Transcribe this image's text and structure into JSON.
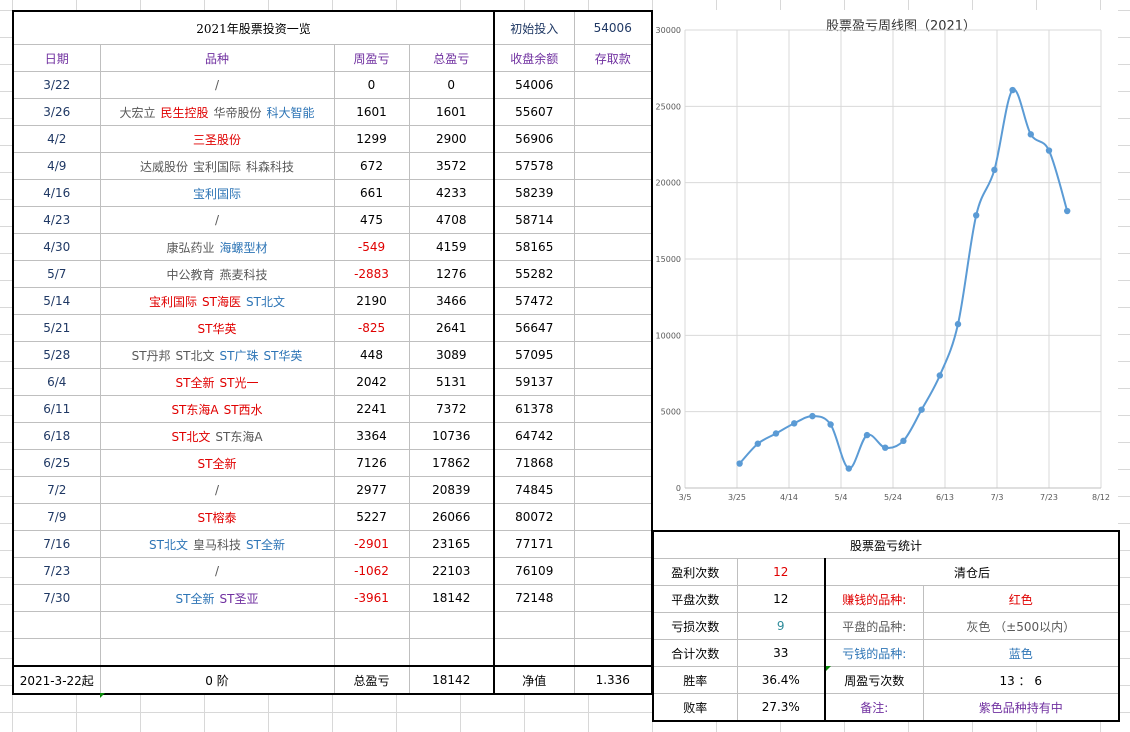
{
  "sheet": {
    "title": "2021年股票投资一览",
    "initial_label": "初始投入",
    "initial_value": "54006",
    "headers": [
      "日期",
      "品种",
      "周盈亏",
      "总盈亏",
      "收盘余额",
      "存取款"
    ],
    "rows": [
      {
        "date": "3/22",
        "stocks": [
          {
            "t": "/",
            "c": "gray"
          }
        ],
        "week": "0",
        "wc": "",
        "total": "0",
        "balance": "54006"
      },
      {
        "date": "3/26",
        "stocks": [
          {
            "t": "大宏立",
            "c": "gray"
          },
          {
            "t": "民生控股",
            "c": "red"
          },
          {
            "t": "华帝股份",
            "c": "gray"
          },
          {
            "t": "科大智能",
            "c": "blue"
          }
        ],
        "week": "1601",
        "wc": "",
        "total": "1601",
        "balance": "55607"
      },
      {
        "date": "4/2",
        "stocks": [
          {
            "t": "三圣股份",
            "c": "red"
          }
        ],
        "week": "1299",
        "wc": "",
        "total": "2900",
        "balance": "56906"
      },
      {
        "date": "4/9",
        "stocks": [
          {
            "t": "达威股份",
            "c": "gray"
          },
          {
            "t": "宝利国际",
            "c": "gray"
          },
          {
            "t": "科森科技",
            "c": "gray"
          }
        ],
        "week": "672",
        "wc": "",
        "total": "3572",
        "balance": "57578"
      },
      {
        "date": "4/16",
        "stocks": [
          {
            "t": "宝利国际",
            "c": "blue"
          }
        ],
        "week": "661",
        "wc": "",
        "total": "4233",
        "balance": "58239"
      },
      {
        "date": "4/23",
        "stocks": [
          {
            "t": "/",
            "c": "gray"
          }
        ],
        "week": "475",
        "wc": "",
        "total": "4708",
        "balance": "58714"
      },
      {
        "date": "4/30",
        "stocks": [
          {
            "t": "康弘药业",
            "c": "gray"
          },
          {
            "t": "海螺型材",
            "c": "blue"
          }
        ],
        "week": "-549",
        "wc": "red",
        "total": "4159",
        "balance": "58165"
      },
      {
        "date": "5/7",
        "stocks": [
          {
            "t": "中公教育",
            "c": "gray"
          },
          {
            "t": "燕麦科技",
            "c": "gray"
          }
        ],
        "week": "-2883",
        "wc": "red",
        "total": "1276",
        "balance": "55282"
      },
      {
        "date": "5/14",
        "stocks": [
          {
            "t": "宝利国际",
            "c": "red"
          },
          {
            "t": "ST海医",
            "c": "red"
          },
          {
            "t": "ST北文",
            "c": "blue"
          }
        ],
        "week": "2190",
        "wc": "",
        "total": "3466",
        "balance": "57472"
      },
      {
        "date": "5/21",
        "stocks": [
          {
            "t": "ST华英",
            "c": "red"
          }
        ],
        "week": "-825",
        "wc": "red",
        "total": "2641",
        "balance": "56647"
      },
      {
        "date": "5/28",
        "stocks": [
          {
            "t": "ST丹邦",
            "c": "gray"
          },
          {
            "t": "ST北文",
            "c": "gray"
          },
          {
            "t": "ST广珠",
            "c": "blue"
          },
          {
            "t": "ST华英",
            "c": "blue"
          }
        ],
        "week": "448",
        "wc": "",
        "total": "3089",
        "balance": "57095"
      },
      {
        "date": "6/4",
        "stocks": [
          {
            "t": "ST全新",
            "c": "red"
          },
          {
            "t": "ST光一",
            "c": "red"
          }
        ],
        "week": "2042",
        "wc": "",
        "total": "5131",
        "balance": "59137"
      },
      {
        "date": "6/11",
        "stocks": [
          {
            "t": "ST东海A",
            "c": "red"
          },
          {
            "t": "ST西水",
            "c": "red"
          }
        ],
        "week": "2241",
        "wc": "",
        "total": "7372",
        "balance": "61378"
      },
      {
        "date": "6/18",
        "stocks": [
          {
            "t": "ST北文",
            "c": "red"
          },
          {
            "t": "ST东海A",
            "c": "gray"
          }
        ],
        "week": "3364",
        "wc": "",
        "total": "10736",
        "balance": "64742"
      },
      {
        "date": "6/25",
        "stocks": [
          {
            "t": "ST全新",
            "c": "red"
          }
        ],
        "week": "7126",
        "wc": "",
        "total": "17862",
        "balance": "71868"
      },
      {
        "date": "7/2",
        "stocks": [
          {
            "t": "/",
            "c": "gray"
          }
        ],
        "week": "2977",
        "wc": "",
        "total": "20839",
        "balance": "74845"
      },
      {
        "date": "7/9",
        "stocks": [
          {
            "t": "ST榕泰",
            "c": "red"
          }
        ],
        "week": "5227",
        "wc": "",
        "total": "26066",
        "balance": "80072"
      },
      {
        "date": "7/16",
        "stocks": [
          {
            "t": "ST北文",
            "c": "blue"
          },
          {
            "t": "皇马科技",
            "c": "gray"
          },
          {
            "t": "ST全新",
            "c": "blue"
          }
        ],
        "week": "-2901",
        "wc": "red",
        "total": "23165",
        "balance": "77171"
      },
      {
        "date": "7/23",
        "stocks": [
          {
            "t": "/",
            "c": "gray"
          }
        ],
        "week": "-1062",
        "wc": "red",
        "total": "22103",
        "balance": "76109"
      },
      {
        "date": "7/30",
        "stocks": [
          {
            "t": "ST全新",
            "c": "blue"
          },
          {
            "t": "ST圣亚",
            "c": "purple"
          }
        ],
        "week": "-3961",
        "wc": "red",
        "total": "18142",
        "balance": "72148"
      }
    ],
    "footer": {
      "start": "2021-3-22起",
      "level": "0 阶",
      "total_label": "总盈亏",
      "total_value": "18142",
      "net_label": "净值",
      "net_value": "1.336"
    }
  },
  "chart_data": {
    "type": "line",
    "title": "股票盈亏周线图（2021）",
    "x": [
      "2021-03-26",
      "2021-04-02",
      "2021-04-09",
      "2021-04-16",
      "2021-04-23",
      "2021-04-30",
      "2021-05-07",
      "2021-05-14",
      "2021-05-21",
      "2021-05-28",
      "2021-06-04",
      "2021-06-11",
      "2021-06-18",
      "2021-06-25",
      "2021-07-02",
      "2021-07-09",
      "2021-07-16",
      "2021-07-23",
      "2021-07-30"
    ],
    "values": [
      1601,
      2900,
      3572,
      4233,
      4708,
      4159,
      1276,
      3466,
      2641,
      3089,
      5131,
      7372,
      10736,
      17862,
      20839,
      26066,
      23165,
      22103,
      18142
    ],
    "x_tick_labels": [
      "3/5",
      "3/25",
      "4/14",
      "5/4",
      "5/24",
      "6/13",
      "7/3",
      "7/23",
      "8/12"
    ],
    "y_tick_labels": [
      "0",
      "5000",
      "10000",
      "15000",
      "20000",
      "25000",
      "30000"
    ],
    "xlim": [
      "2021-03-05",
      "2021-08-12"
    ],
    "ylim": [
      0,
      30000
    ],
    "grid": true,
    "color": "#5b9bd5"
  },
  "stats": {
    "title": "股票盈亏统计",
    "win_label": "盈利次数",
    "win_value": "12",
    "flat_label": "平盘次数",
    "flat_value": "12",
    "loss_label": "亏损次数",
    "loss_value": "9",
    "sum_label": "合计次数",
    "sum_value": "33",
    "win_rate_label": "胜率",
    "win_rate_value": "36.4%",
    "loss_rate_label": "败率",
    "loss_rate_value": "27.3%",
    "after_clear": "清仓后",
    "earn_label": "赚钱的品种:",
    "earn_value": "红色",
    "flat_kind_label": "平盘的品种:",
    "flat_kind_value": "灰色 （±500以内）",
    "lose_label": "亏钱的品种:",
    "lose_value": "蓝色",
    "week_label": "周盈亏次数",
    "week_value": "13 ： 6",
    "note_label": "备注:",
    "note_value": "紫色品种持有中"
  }
}
